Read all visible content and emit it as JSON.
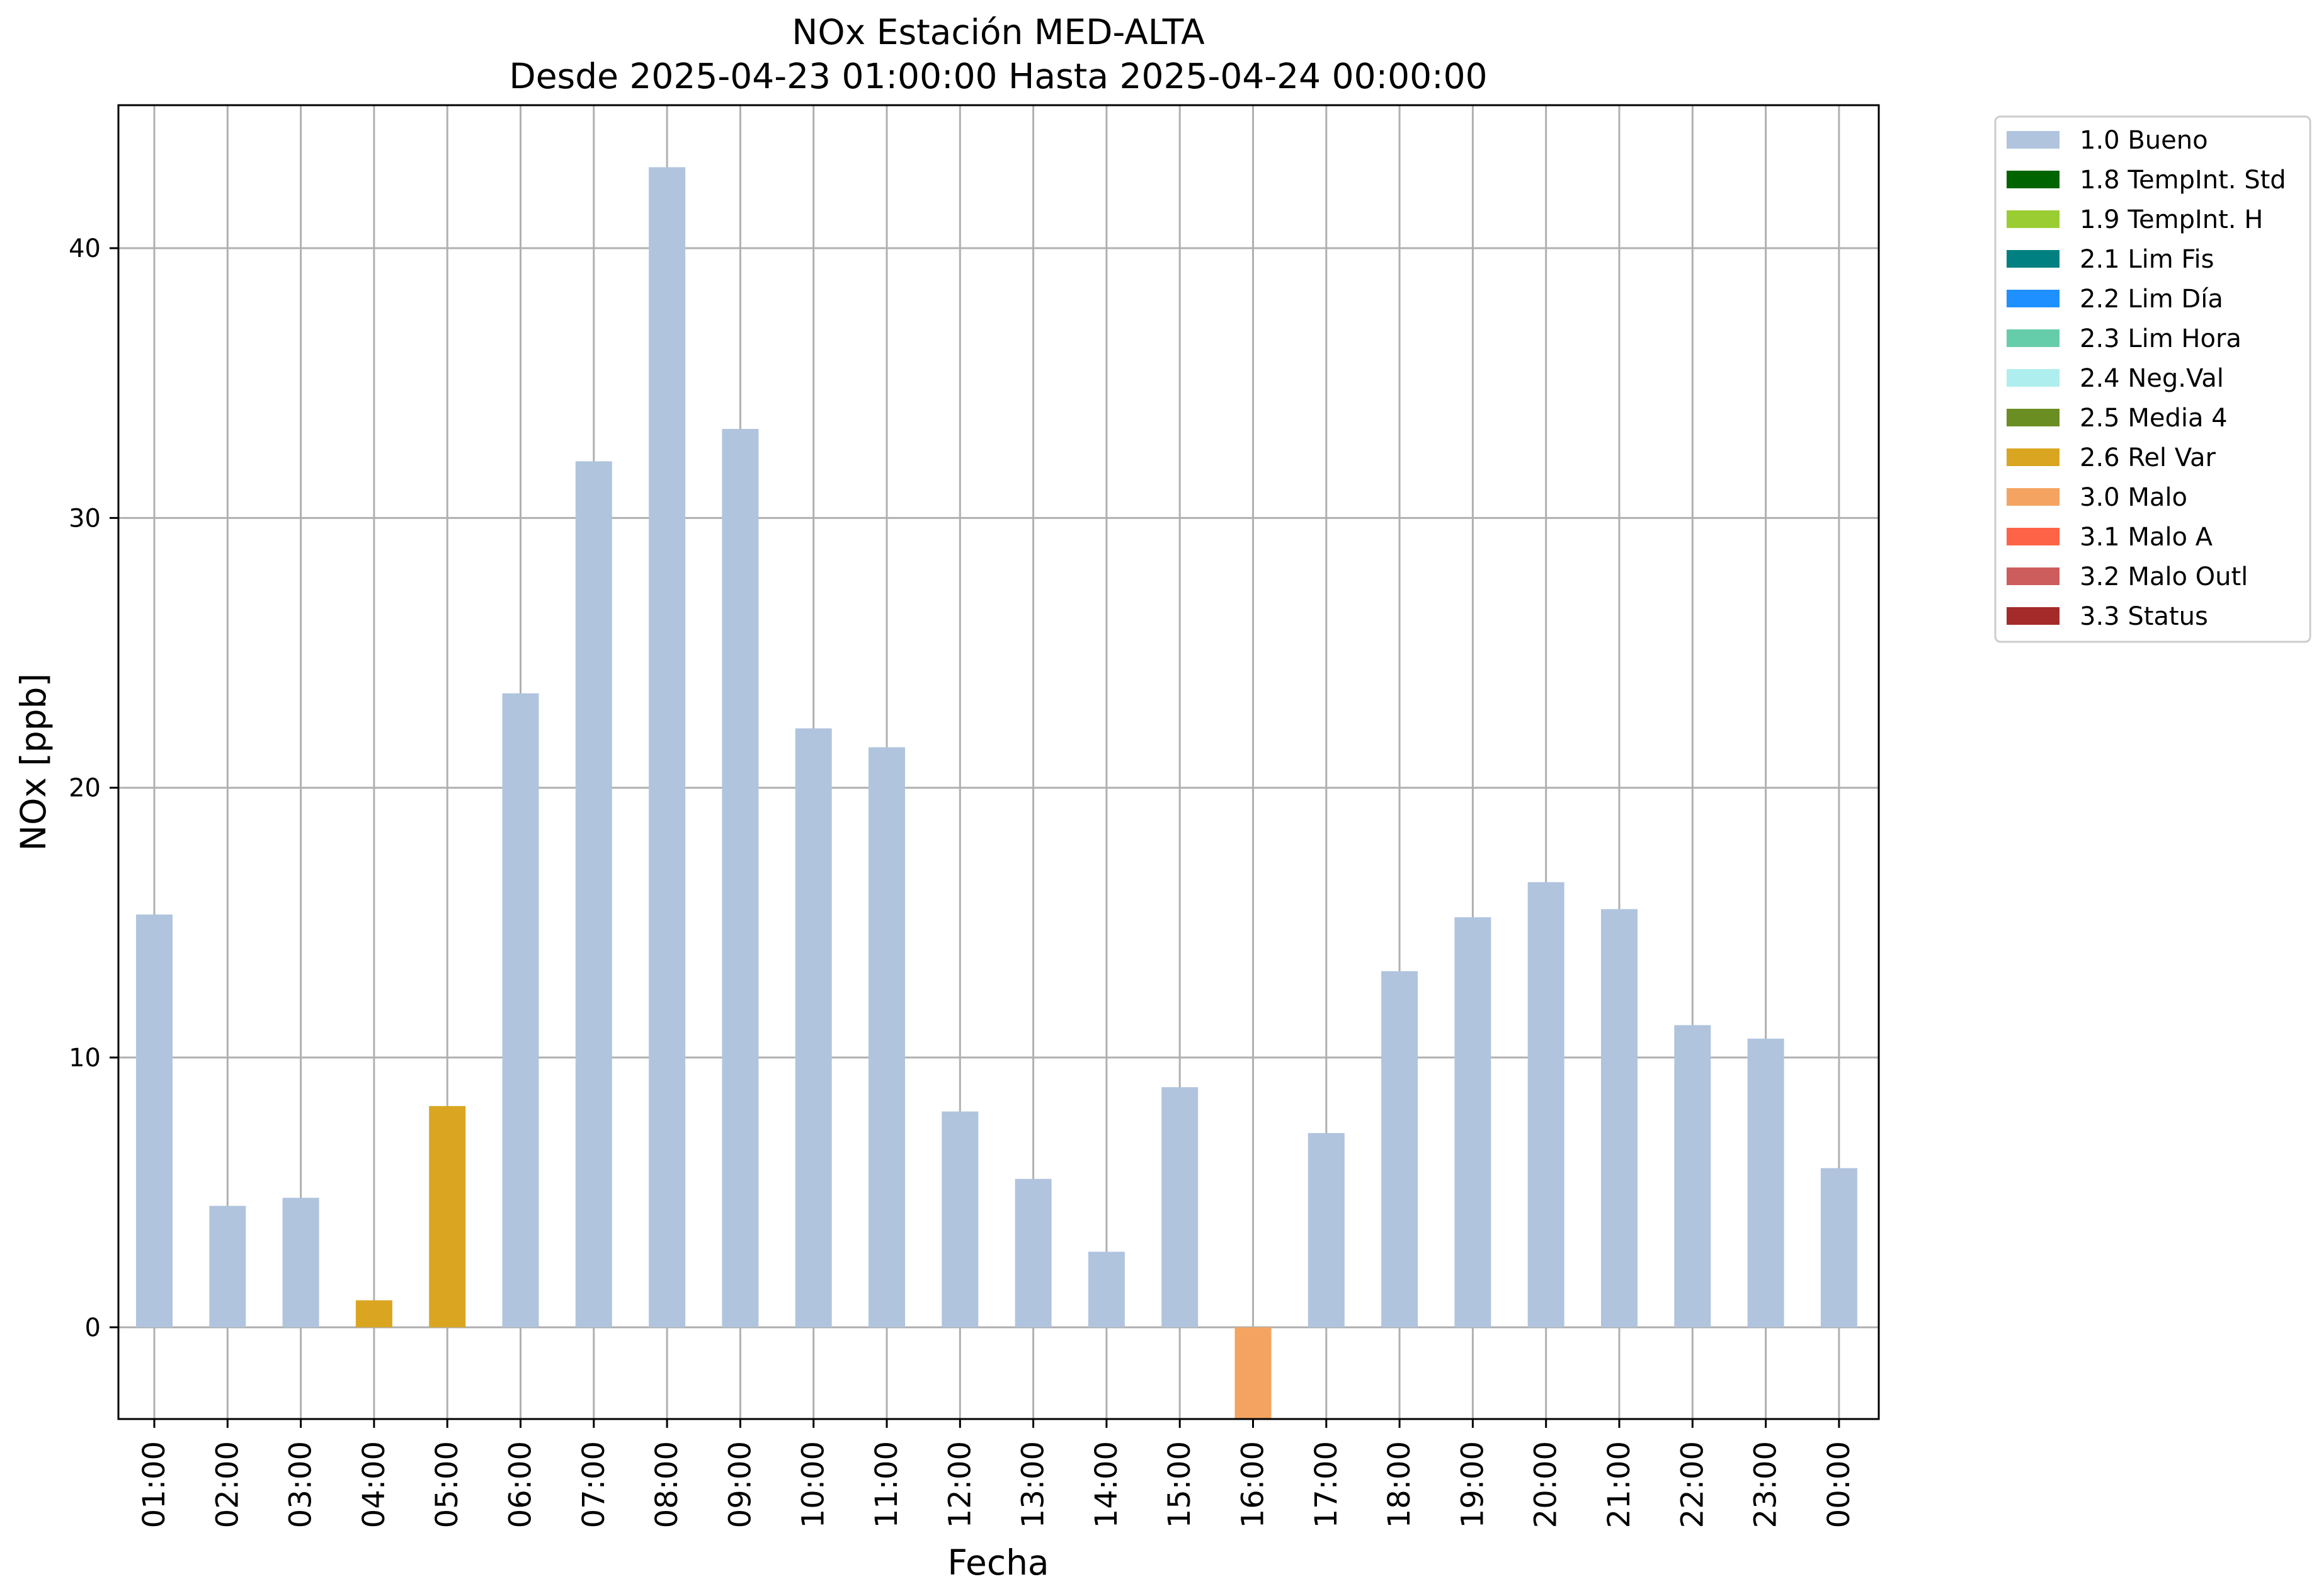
{
  "chart_data": {
    "type": "bar",
    "title": "NOx Estación MED-ALTA",
    "subtitle": "Desde 2025-04-23 01:00:00 Hasta 2025-04-24 00:00:00",
    "xlabel": "Fecha",
    "ylabel": "NOx [ppb]",
    "ylim": [
      -3.4,
      45.3
    ],
    "yticks": [
      0,
      10,
      20,
      30,
      40
    ],
    "grid": true,
    "legend_position": "outside-top-right",
    "categories": [
      "01:00",
      "02:00",
      "03:00",
      "04:00",
      "05:00",
      "06:00",
      "07:00",
      "08:00",
      "09:00",
      "10:00",
      "11:00",
      "12:00",
      "13:00",
      "14:00",
      "15:00",
      "16:00",
      "17:00",
      "18:00",
      "19:00",
      "20:00",
      "21:00",
      "22:00",
      "23:00",
      "00:00"
    ],
    "values": [
      15.3,
      4.5,
      4.8,
      1.0,
      8.2,
      23.5,
      32.1,
      43.0,
      33.3,
      22.2,
      21.5,
      8.0,
      5.5,
      2.8,
      8.9,
      -3.4,
      7.2,
      13.2,
      15.2,
      16.5,
      15.5,
      11.2,
      10.7,
      5.9
    ],
    "flags": [
      "1.0 Bueno",
      "1.0 Bueno",
      "1.0 Bueno",
      "2.6 Rel Var",
      "2.6 Rel Var",
      "1.0 Bueno",
      "1.0 Bueno",
      "1.0 Bueno",
      "1.0 Bueno",
      "1.0 Bueno",
      "1.0 Bueno",
      "1.0 Bueno",
      "1.0 Bueno",
      "1.0 Bueno",
      "1.0 Bueno",
      "3.0 Malo",
      "1.0 Bueno",
      "1.0 Bueno",
      "1.0 Bueno",
      "1.0 Bueno",
      "1.0 Bueno",
      "1.0 Bueno",
      "1.0 Bueno",
      "1.0 Bueno"
    ],
    "legend": [
      {
        "label": "1.0 Bueno",
        "color": "#b0c4de"
      },
      {
        "label": "1.8 TempInt. Std",
        "color": "#006400"
      },
      {
        "label": "1.9 TempInt. H",
        "color": "#9acd32"
      },
      {
        "label": "2.1 Lim Fis",
        "color": "#008080"
      },
      {
        "label": "2.2 Lim Día",
        "color": "#1e90ff"
      },
      {
        "label": "2.3 Lim Hora",
        "color": "#66cdaa"
      },
      {
        "label": "2.4 Neg.Val",
        "color": "#afeeee"
      },
      {
        "label": "2.5 Media 4",
        "color": "#6b8e23"
      },
      {
        "label": "2.6 Rel Var",
        "color": "#daa520"
      },
      {
        "label": "3.0 Malo",
        "color": "#f4a460"
      },
      {
        "label": "3.1 Malo A",
        "color": "#ff6347"
      },
      {
        "label": "3.2 Malo Outl",
        "color": "#cd5c5c"
      },
      {
        "label": "3.3 Status",
        "color": "#a52a2a"
      }
    ]
  }
}
